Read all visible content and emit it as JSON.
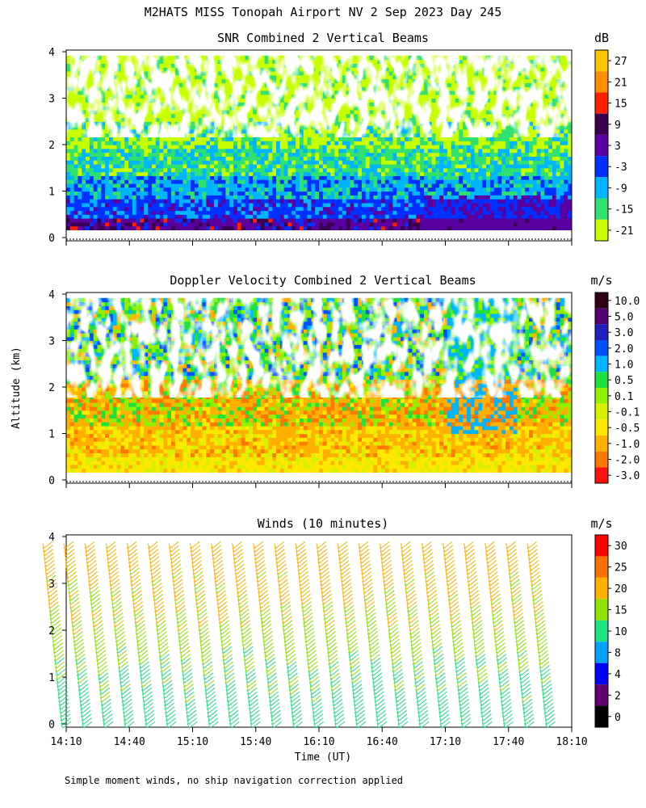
{
  "figure": {
    "title": "M2HATS MISS Tonopah Airport NV   2 Sep 2023 Day 245",
    "y_axis_label": "Altitude (km)",
    "x_axis_label": "Time (UT)",
    "footnote": "Simple moment winds, no ship navigation correction applied"
  },
  "chart_data": [
    {
      "type": "heatmap",
      "title": "SNR Combined 2 Vertical Beams",
      "colorbar_unit": "dB",
      "xlim": [
        "14:10",
        "18:10"
      ],
      "ylim": [
        0,
        4
      ],
      "y_ticks": [
        0,
        1,
        2,
        3,
        4
      ],
      "colorbar_ticks": [
        "27",
        "21",
        "15",
        "9",
        "3",
        "-3",
        "-9",
        "-15",
        "-21"
      ],
      "colorbar_colors": [
        "#ffc400",
        "#ff8c00",
        "#ff2000",
        "#3a0050",
        "#5a00a0",
        "#0030ff",
        "#00b4ff",
        "#30e070",
        "#c8ff00"
      ],
      "valid_altitude_range_km": [
        0.15,
        3.9
      ]
    },
    {
      "type": "heatmap",
      "title": "Doppler Velocity Combined 2 Vertical Beams",
      "colorbar_unit": "m/s",
      "xlim": [
        "14:10",
        "18:10"
      ],
      "ylim": [
        0,
        4
      ],
      "y_ticks": [
        0,
        1,
        2,
        3,
        4
      ],
      "colorbar_ticks": [
        "10.0",
        "5.0",
        "3.0",
        "2.0",
        "1.0",
        "0.5",
        "0.1",
        "-0.1",
        "-0.5",
        "-1.0",
        "-2.0",
        "-3.0"
      ],
      "colorbar_colors": [
        "#300018",
        "#500070",
        "#2020c0",
        "#0050ff",
        "#00b4ff",
        "#20e040",
        "#90f000",
        "#d8f000",
        "#ffe800",
        "#ffb000",
        "#ff7800",
        "#ff1010"
      ],
      "valid_altitude_range_km": [
        0.15,
        3.9
      ]
    },
    {
      "type": "scatter",
      "title": "Winds (10 minutes)",
      "colorbar_unit": "m/s",
      "xlim": [
        "14:10",
        "18:10"
      ],
      "ylim": [
        0,
        4
      ],
      "y_ticks": [
        0,
        1,
        2,
        3,
        4
      ],
      "x_ticks": [
        "14:10",
        "14:40",
        "15:10",
        "15:40",
        "16:10",
        "16:40",
        "17:10",
        "17:40",
        "18:10"
      ],
      "colorbar_ticks": [
        "30",
        "25",
        "20",
        "15",
        "10",
        "8",
        "4",
        "2",
        "0"
      ],
      "colorbar_colors": [
        "#ff0000",
        "#ff7000",
        "#ffb000",
        "#90e000",
        "#20e080",
        "#00a0ff",
        "#0000ff",
        "#600070",
        "#000000"
      ],
      "wind_profile_times": [
        "14:10",
        "14:20",
        "14:30",
        "14:40",
        "14:50",
        "15:00",
        "15:10",
        "15:20",
        "15:30",
        "15:40",
        "15:50",
        "16:00",
        "16:10",
        "16:20",
        "16:30",
        "16:40",
        "16:50",
        "17:00",
        "17:10",
        "17:20",
        "17:30",
        "17:40",
        "17:50",
        "18:00",
        "18:10"
      ],
      "wind_speed_by_altitude": {
        "altitude_km": [
          0,
          0.5,
          1.0,
          1.5,
          2.0,
          2.5,
          3.0,
          3.5,
          3.9
        ],
        "speed_ms": [
          12,
          13,
          14,
          16,
          18,
          20,
          21,
          22,
          22
        ]
      }
    }
  ]
}
